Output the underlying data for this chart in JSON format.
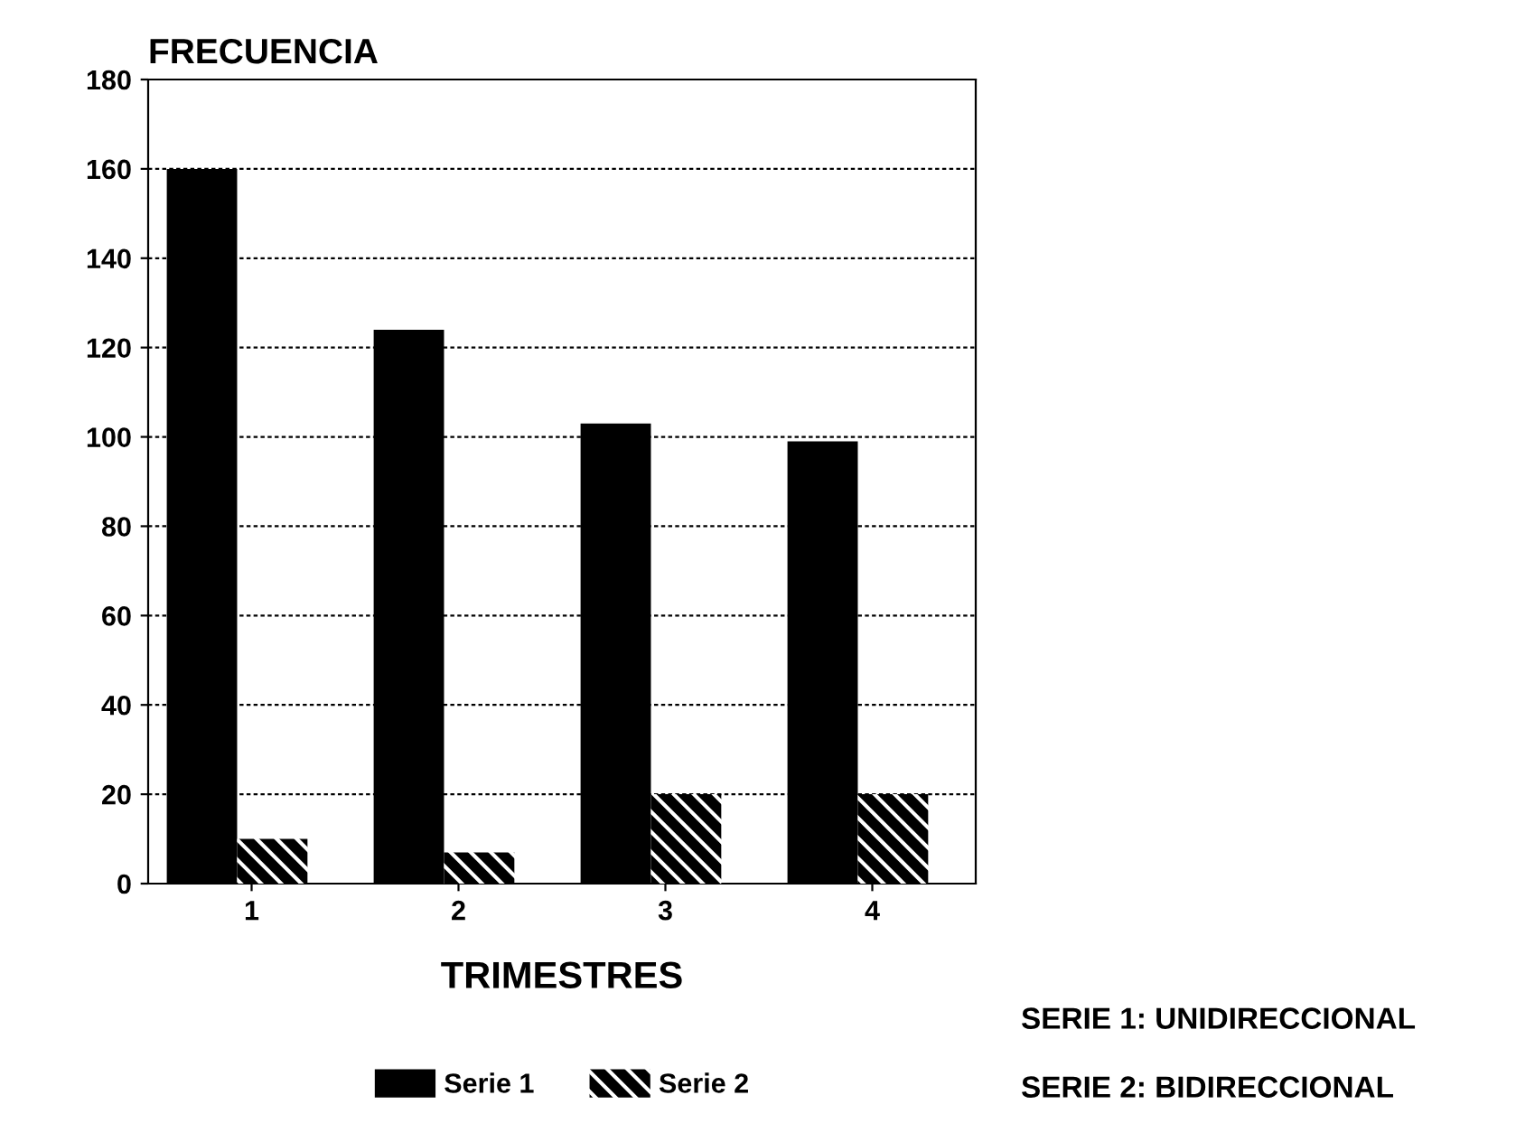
{
  "chart_data": {
    "type": "bar",
    "ylabel": "FRECUENCIA",
    "xlabel": "TRIMESTRES",
    "categories": [
      "1",
      "2",
      "3",
      "4"
    ],
    "series": [
      {
        "name": "Serie 1",
        "color": "#000000",
        "values": [
          160,
          124,
          103,
          99
        ]
      },
      {
        "name": "Serie 2",
        "color": "#000000",
        "values": [
          10,
          7,
          20,
          20
        ]
      }
    ],
    "ylim": [
      0,
      180
    ],
    "yticks": [
      0,
      20,
      40,
      60,
      80,
      100,
      120,
      140,
      160,
      180
    ],
    "grid": "y",
    "legend": "bottom",
    "annotations": [
      "SERIE 1: UNIDIRECCIONAL",
      "SERIE 2: BIDIRECCIONAL"
    ]
  }
}
